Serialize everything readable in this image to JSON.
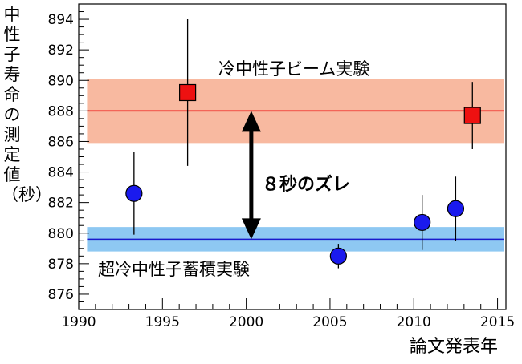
{
  "chart_data": {
    "type": "scatter",
    "ylabel": "中性子寿命の測定値（秒）",
    "xlabel": "論文発表年",
    "xlim": [
      1990,
      2015.5
    ],
    "ylim": [
      875,
      895
    ],
    "x_ticks": [
      1990,
      1995,
      2000,
      2005,
      2010,
      2015
    ],
    "y_ticks": [
      876,
      878,
      880,
      882,
      884,
      886,
      888,
      890,
      892,
      894
    ],
    "series": [
      {
        "name": "冷中性子ビーム実験",
        "marker": "square",
        "color": "#ee1111",
        "points": [
          {
            "x": 1996.5,
            "y": 889.2,
            "yerr_low": 4.8,
            "yerr_high": 4.8
          },
          {
            "x": 2013.5,
            "y": 887.7,
            "yerr_low": 2.2,
            "yerr_high": 2.2
          }
        ],
        "band": {
          "center": 888.0,
          "low": 885.9,
          "high": 890.1,
          "fill": "#f8b9a0",
          "line": "#ee1111"
        }
      },
      {
        "name": "超冷中性子蓄積実験",
        "marker": "circle",
        "color": "#1a1aee",
        "points": [
          {
            "x": 1993.3,
            "y": 882.6,
            "yerr_low": 2.7,
            "yerr_high": 2.7
          },
          {
            "x": 2005.5,
            "y": 878.5,
            "yerr_low": 0.8,
            "yerr_high": 0.8
          },
          {
            "x": 2010.5,
            "y": 880.7,
            "yerr_low": 1.8,
            "yerr_high": 1.8
          },
          {
            "x": 2012.5,
            "y": 881.6,
            "yerr_low": 2.1,
            "yerr_high": 2.1
          }
        ],
        "band": {
          "center": 879.6,
          "low": 878.8,
          "high": 880.4,
          "fill": "#8ec8f2",
          "line": "#1a1acc"
        }
      }
    ],
    "annotations": {
      "gap_label": "８秒のズレ",
      "arrow": {
        "x": 2000.3,
        "y_from": 888.0,
        "y_to": 879.6
      }
    }
  }
}
